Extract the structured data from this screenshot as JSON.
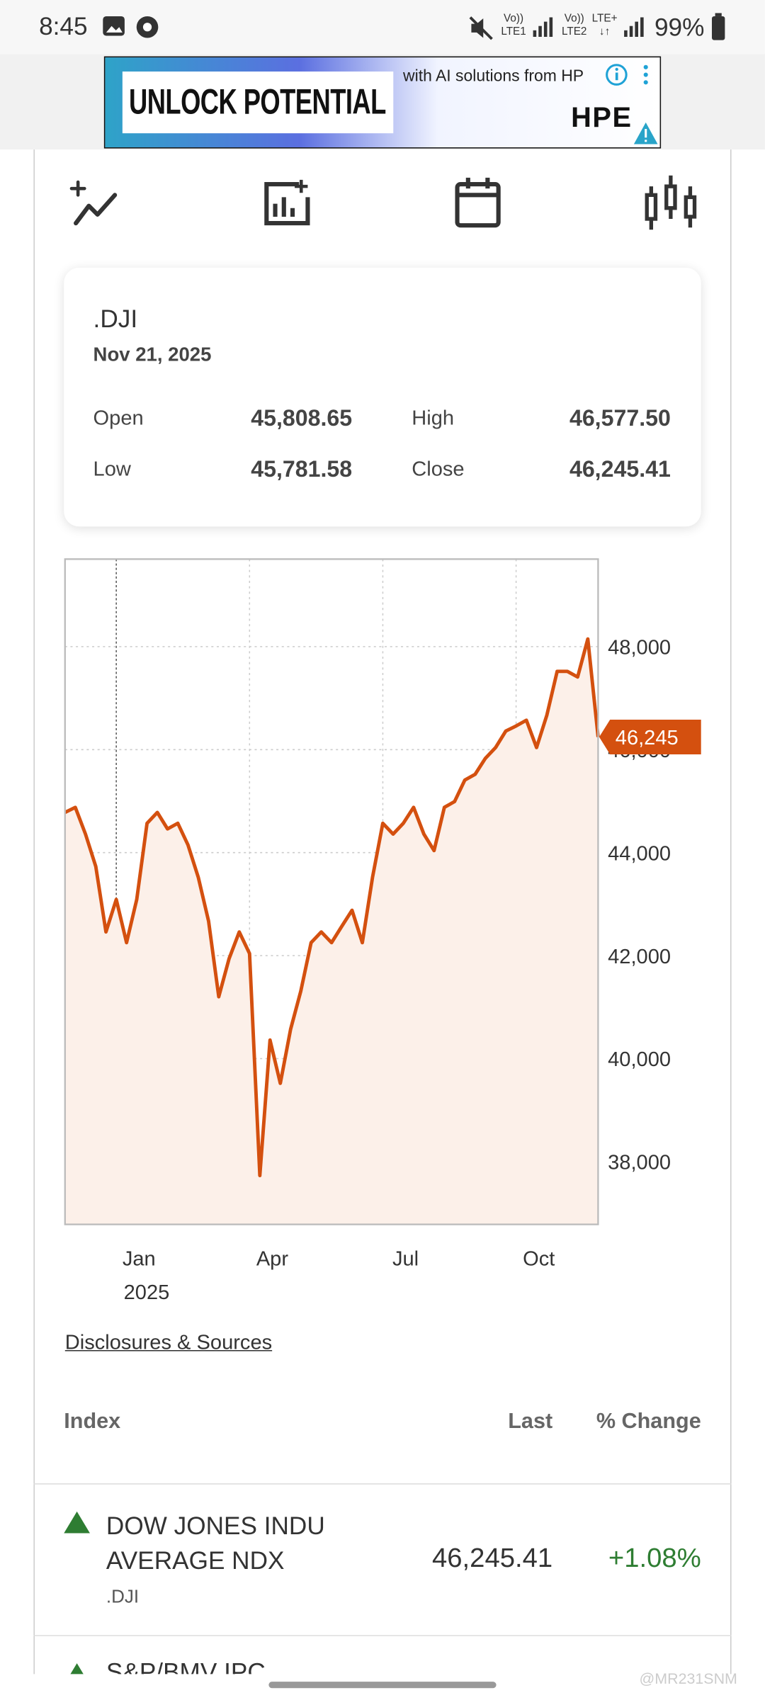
{
  "status_bar": {
    "time": "8:45",
    "signals": [
      {
        "top": "Vo))",
        "bottom": "LTE1"
      },
      {
        "top": "Vo))",
        "bottom": "LTE2"
      },
      {
        "top": "LTE+",
        "bottom": "↓↑"
      }
    ],
    "battery": "99%"
  },
  "ad": {
    "headline": "UNLOCK POTENTIAL",
    "tagline": "with AI solutions from HP",
    "brand": "HPE"
  },
  "quote": {
    "symbol": ".DJI",
    "date": "Nov 21, 2025",
    "fields": [
      {
        "label": "Open",
        "value": "45,808.65"
      },
      {
        "label": "High",
        "value": "46,577.50"
      },
      {
        "label": "Low",
        "value": "45,781.58"
      },
      {
        "label": "Close",
        "value": "46,245.41"
      }
    ]
  },
  "chart_data": {
    "type": "line",
    "categories": [
      null,
      null,
      null,
      null,
      null,
      "Jan",
      null,
      null,
      null,
      null,
      null,
      null,
      null,
      null,
      null,
      null,
      null,
      null,
      "Apr",
      null,
      null,
      null,
      null,
      null,
      null,
      null,
      null,
      null,
      null,
      null,
      null,
      "Jul",
      null,
      null,
      null,
      null,
      null,
      null,
      null,
      null,
      null,
      null,
      null,
      null,
      "Oct",
      null,
      null,
      null,
      null,
      null,
      null,
      null,
      null
    ],
    "year_label": "2025",
    "values": [
      44780,
      44880,
      44360,
      43730,
      42460,
      43090,
      42250,
      43090,
      44570,
      44780,
      44460,
      44570,
      44150,
      43520,
      42670,
      41200,
      41940,
      42460,
      42040,
      37730,
      40360,
      39520,
      40570,
      41310,
      42250,
      42460,
      42250,
      42570,
      42880,
      42250,
      43520,
      44570,
      44360,
      44570,
      44880,
      44360,
      44040,
      44880,
      44990,
      45410,
      45520,
      45830,
      46040,
      46360,
      46460,
      46570,
      46040,
      46670,
      47520,
      47520,
      47410,
      48150,
      46245
    ],
    "last_label": "46,245",
    "color": "#d4500f",
    "area_color": "#fcf0e9",
    "ylim": [
      36780,
      49700
    ],
    "yticks": [
      {
        "value": 38000,
        "label": "38,000"
      },
      {
        "value": 40000,
        "label": "40,000"
      },
      {
        "value": 42000,
        "label": "42,000"
      },
      {
        "value": 44000,
        "label": "44,000"
      },
      {
        "value": 46000,
        "label": "46,000"
      },
      {
        "value": 48000,
        "label": "48,000"
      }
    ],
    "grid": true
  },
  "disclosures": "Disclosures & Sources",
  "table": {
    "columns": [
      "Index",
      "Last",
      "% Change"
    ],
    "rows": [
      {
        "name": "DOW JONES INDU AVERAGE NDX",
        "symbol": ".DJI",
        "last": "46,245.41",
        "change": "+1.08%"
      },
      {
        "name": "S&P/BMV IPC"
      }
    ]
  },
  "watermark": "@MR231SNM"
}
